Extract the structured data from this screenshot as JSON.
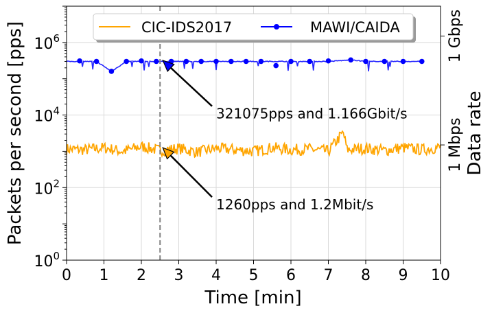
{
  "chart_data": {
    "type": "line",
    "xlabel": "Time [min]",
    "ylabel": "Packets per second [pps]",
    "ylabel_right": "Data rate",
    "xlim": [
      0,
      10
    ],
    "ylim": [
      1,
      10000000
    ],
    "yscale": "log",
    "grid": true,
    "x_ticks": [
      "0",
      "1",
      "2",
      "3",
      "4",
      "5",
      "6",
      "7",
      "8",
      "9",
      "10"
    ],
    "y_ticks": [
      {
        "value": 1,
        "base": "10",
        "exp": "0"
      },
      {
        "value": 100,
        "base": "10",
        "exp": "2"
      },
      {
        "value": 10000,
        "base": "10",
        "exp": "4"
      },
      {
        "value": 1000000,
        "base": "10",
        "exp": "6"
      }
    ],
    "right_ticks": [
      {
        "value": 1500,
        "label": "1 Mbps"
      },
      {
        "value": 1500000,
        "label": "1 Gbps"
      }
    ],
    "legend": {
      "placement": "top-center"
    },
    "vline": {
      "x": 2.5,
      "style": "dashed",
      "color": "#808080"
    },
    "series": [
      {
        "name": "CIC-IDS2017",
        "color": "#FFA500",
        "marker": "none",
        "x": [
          0,
          0.5,
          1,
          1.5,
          2,
          2.5,
          3,
          3.5,
          4,
          4.5,
          5,
          5.5,
          6,
          6.5,
          7,
          7.4,
          7.5,
          8,
          8.5,
          9,
          9.5,
          10
        ],
        "y": [
          1150,
          1100,
          1250,
          1000,
          1350,
          1050,
          1200,
          950,
          1200,
          1100,
          1000,
          1250,
          1100,
          1150,
          1000,
          3300,
          1100,
          1200,
          1050,
          1250,
          1100,
          1300
        ]
      },
      {
        "name": "MAWI/CAIDA",
        "color": "#0000FF",
        "marker": "circle",
        "x": [
          0,
          0.3,
          0.8,
          1.2,
          1.6,
          2.0,
          2.4,
          2.8,
          3.2,
          3.6,
          4.0,
          4.4,
          4.8,
          5.2,
          5.6,
          6.0,
          6.5,
          7.0,
          7.6,
          8.0,
          8.5,
          9.0,
          9.5
        ],
        "y": [
          300000,
          300000,
          300000,
          160000,
          300000,
          300000,
          300000,
          300000,
          300000,
          300000,
          300000,
          300000,
          300000,
          300000,
          300000,
          300000,
          300000,
          300000,
          330000,
          300000,
          300000,
          300000,
          300000
        ],
        "markers_x": [
          0.35,
          0.8,
          1.2,
          1.6,
          2.0,
          2.4,
          2.8,
          3.2,
          3.6,
          4.0,
          4.4,
          4.8,
          5.2,
          5.6,
          6.0,
          6.5,
          7.0,
          7.6,
          8.0,
          8.5,
          9.0,
          9.5
        ],
        "markers_y": [
          310000,
          300000,
          160000,
          300000,
          310000,
          300000,
          300000,
          300000,
          300000,
          300000,
          300000,
          300000,
          300000,
          230000,
          300000,
          300000,
          310000,
          330000,
          300000,
          300000,
          300000,
          300000
        ]
      }
    ],
    "annotations": [
      {
        "text": "321075pps and 1.166Gbit/s",
        "x": 2.5,
        "y": 321075,
        "text_x": 4.0,
        "text_y": 8000
      },
      {
        "text": "1260pps and 1.2Mbit/s",
        "x": 2.5,
        "y": 1260,
        "text_x": 4.0,
        "text_y": 25
      }
    ]
  }
}
